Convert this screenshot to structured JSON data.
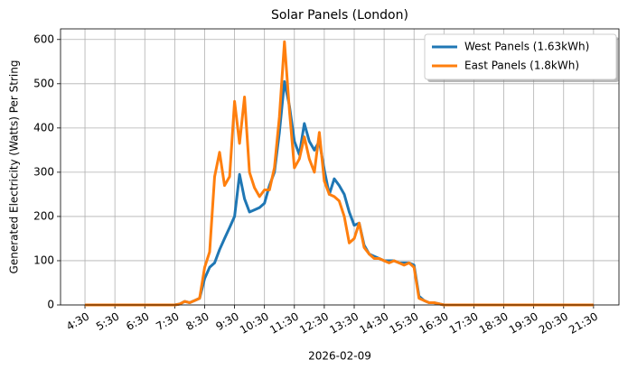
{
  "chart_data": {
    "type": "line",
    "title": "Solar Panels (London)",
    "x_label": "2026-02-09",
    "y_label": "Generated Electricity (Watts) Per String",
    "x": [
      "4:30",
      "7:30",
      "7:40",
      "7:50",
      "8:00",
      "8:10",
      "8:20",
      "8:30",
      "8:40",
      "8:50",
      "9:00",
      "9:10",
      "9:20",
      "9:30",
      "9:40",
      "9:50",
      "10:00",
      "10:10",
      "10:20",
      "10:30",
      "10:40",
      "10:50",
      "11:00",
      "11:10",
      "11:20",
      "11:30",
      "11:40",
      "11:50",
      "12:00",
      "12:10",
      "12:20",
      "12:30",
      "12:40",
      "12:50",
      "13:00",
      "13:10",
      "13:20",
      "13:30",
      "13:40",
      "13:50",
      "14:00",
      "14:10",
      "14:20",
      "14:30",
      "14:40",
      "14:50",
      "15:00",
      "15:10",
      "15:20",
      "15:30",
      "15:40",
      "15:50",
      "16:00",
      "16:10",
      "16:30",
      "21:30"
    ],
    "series": [
      {
        "name": "West Panels (1.63kWh)",
        "color": "#1f77b4",
        "values": [
          0,
          0,
          2,
          8,
          5,
          10,
          15,
          60,
          85,
          95,
          125,
          150,
          175,
          200,
          295,
          240,
          210,
          215,
          220,
          230,
          270,
          300,
          390,
          505,
          450,
          370,
          340,
          410,
          370,
          350,
          370,
          305,
          250,
          285,
          270,
          250,
          210,
          180,
          185,
          135,
          115,
          110,
          105,
          100,
          100,
          100,
          95,
          95,
          95,
          90,
          20,
          10,
          5,
          5,
          0,
          0
        ]
      },
      {
        "name": "East Panels (1.8kWh)",
        "color": "#ff7f0e",
        "values": [
          0,
          0,
          2,
          8,
          5,
          10,
          15,
          85,
          120,
          290,
          345,
          270,
          290,
          460,
          365,
          470,
          300,
          265,
          245,
          260,
          260,
          310,
          425,
          595,
          440,
          310,
          330,
          380,
          330,
          300,
          390,
          280,
          250,
          245,
          235,
          200,
          140,
          150,
          185,
          130,
          115,
          105,
          105,
          100,
          95,
          100,
          95,
          90,
          95,
          85,
          15,
          10,
          5,
          5,
          0,
          0
        ]
      }
    ],
    "xlim": [
      "3:41",
      "22:21"
    ],
    "xticks": [
      "4:30",
      "5:30",
      "6:30",
      "7:30",
      "8:30",
      "9:30",
      "10:30",
      "11:30",
      "12:30",
      "13:30",
      "14:30",
      "15:30",
      "16:30",
      "17:30",
      "18:30",
      "19:30",
      "20:30",
      "21:30"
    ],
    "ylim": [
      0,
      624
    ],
    "yticks": [
      0,
      100,
      200,
      300,
      400,
      500,
      600
    ],
    "grid": true,
    "legend": "upper right"
  }
}
